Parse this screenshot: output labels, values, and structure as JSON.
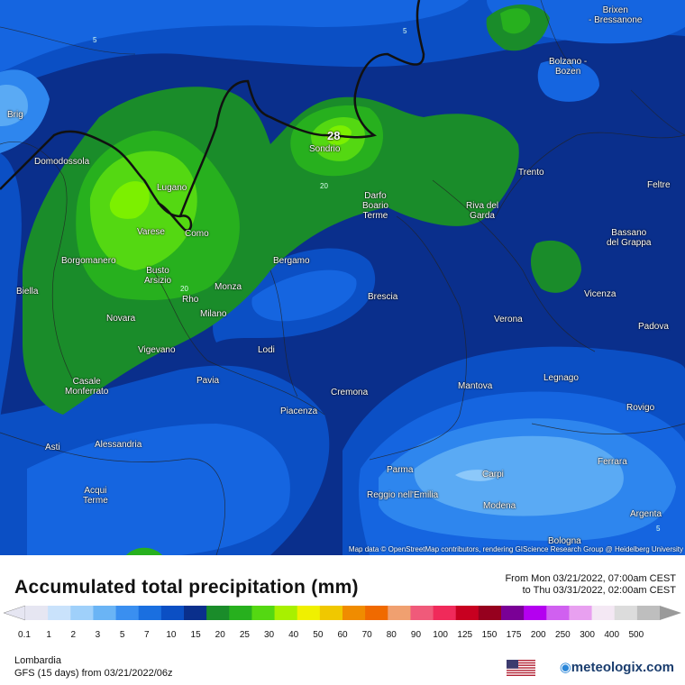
{
  "map": {
    "attribution": "Map data © OpenStreetMap contributors, rendering GIScience Research Group @ Heidelberg University",
    "colors": {
      "p5": "#0a2f8c",
      "p7": "#0b4fc4",
      "p5b": "#1565e0",
      "p3": "#2e86ee",
      "p2": "#5aaaf4",
      "p1": "#8cc8fa",
      "p15": "#1a8c2a",
      "p20": "#27b01e",
      "p25": "#54d812",
      "p30": "#7cf000"
    },
    "cities": [
      {
        "name": "Brig"
      },
      {
        "name": "Domodossola"
      },
      {
        "name": "Lugano"
      },
      {
        "name": "Varese"
      },
      {
        "name": "Como"
      },
      {
        "name": "Borgomanero"
      },
      {
        "name": "Busto\nArsizio"
      },
      {
        "name": "Rho"
      },
      {
        "name": "Monza"
      },
      {
        "name": "Milano"
      },
      {
        "name": "Biella"
      },
      {
        "name": "Novara"
      },
      {
        "name": "Vigevano"
      },
      {
        "name": "Casale\nMonferrato"
      },
      {
        "name": "Asti"
      },
      {
        "name": "Alessandria"
      },
      {
        "name": "Acqui\nTerme"
      },
      {
        "name": "Pavia"
      },
      {
        "name": "Lodi"
      },
      {
        "name": "Piacenza"
      },
      {
        "name": "Cremona"
      },
      {
        "name": "Bergamo"
      },
      {
        "name": "Brescia"
      },
      {
        "name": "Sondrio"
      },
      {
        "name": "Darfo\nBoario\nTerme"
      },
      {
        "name": "Trento"
      },
      {
        "name": "Riva del\nGarda"
      },
      {
        "name": "Bolzano -\nBozen"
      },
      {
        "name": "Brixen\n- Bressanone"
      },
      {
        "name": "Feltre"
      },
      {
        "name": "Bassano\ndel Grappa"
      },
      {
        "name": "Vicenza"
      },
      {
        "name": "Verona"
      },
      {
        "name": "Padova"
      },
      {
        "name": "Legnago"
      },
      {
        "name": "Mantova"
      },
      {
        "name": "Rovigo"
      },
      {
        "name": "Parma"
      },
      {
        "name": "Carpi"
      },
      {
        "name": "Reggio nell'Emilia"
      },
      {
        "name": "Modena"
      },
      {
        "name": "Ferrara"
      },
      {
        "name": "Argenta"
      },
      {
        "name": "Bologna"
      }
    ],
    "max_value": "28",
    "contour_labels": [
      "5",
      "5",
      "20",
      "20",
      "5"
    ]
  },
  "legend": {
    "title": "Accumulated total precipitation (mm)",
    "period_from": "From Mon 03/21/2022, 07:00am CEST",
    "period_to": "to Thu 03/31/2022, 02:00am CEST",
    "ticks": [
      "0.1",
      "1",
      "2",
      "3",
      "5",
      "7",
      "10",
      "15",
      "20",
      "25",
      "30",
      "40",
      "50",
      "60",
      "70",
      "80",
      "90",
      "100",
      "125",
      "150",
      "175",
      "200",
      "250",
      "300",
      "400",
      "500"
    ],
    "colors": [
      "#e6e6f2",
      "#c9e2fb",
      "#9fd0fa",
      "#6ab4f5",
      "#3a8ff0",
      "#1a6fe0",
      "#0b4fc4",
      "#0a2f8c",
      "#1a8c2a",
      "#27b01e",
      "#54d812",
      "#a8f000",
      "#f0f000",
      "#f0c800",
      "#f08c00",
      "#f06a00",
      "#f0a070",
      "#f05a7a",
      "#f02a5a",
      "#c80020",
      "#96001e",
      "#7a0096",
      "#b400f0",
      "#d060f0",
      "#e8a0f0",
      "#f4e8f4",
      "#dcdcdc",
      "#bebebe"
    ],
    "region": "Lombardia",
    "model": "GFS (15 days) from 03/21/2022/06z",
    "brand": "meteologix.com"
  }
}
